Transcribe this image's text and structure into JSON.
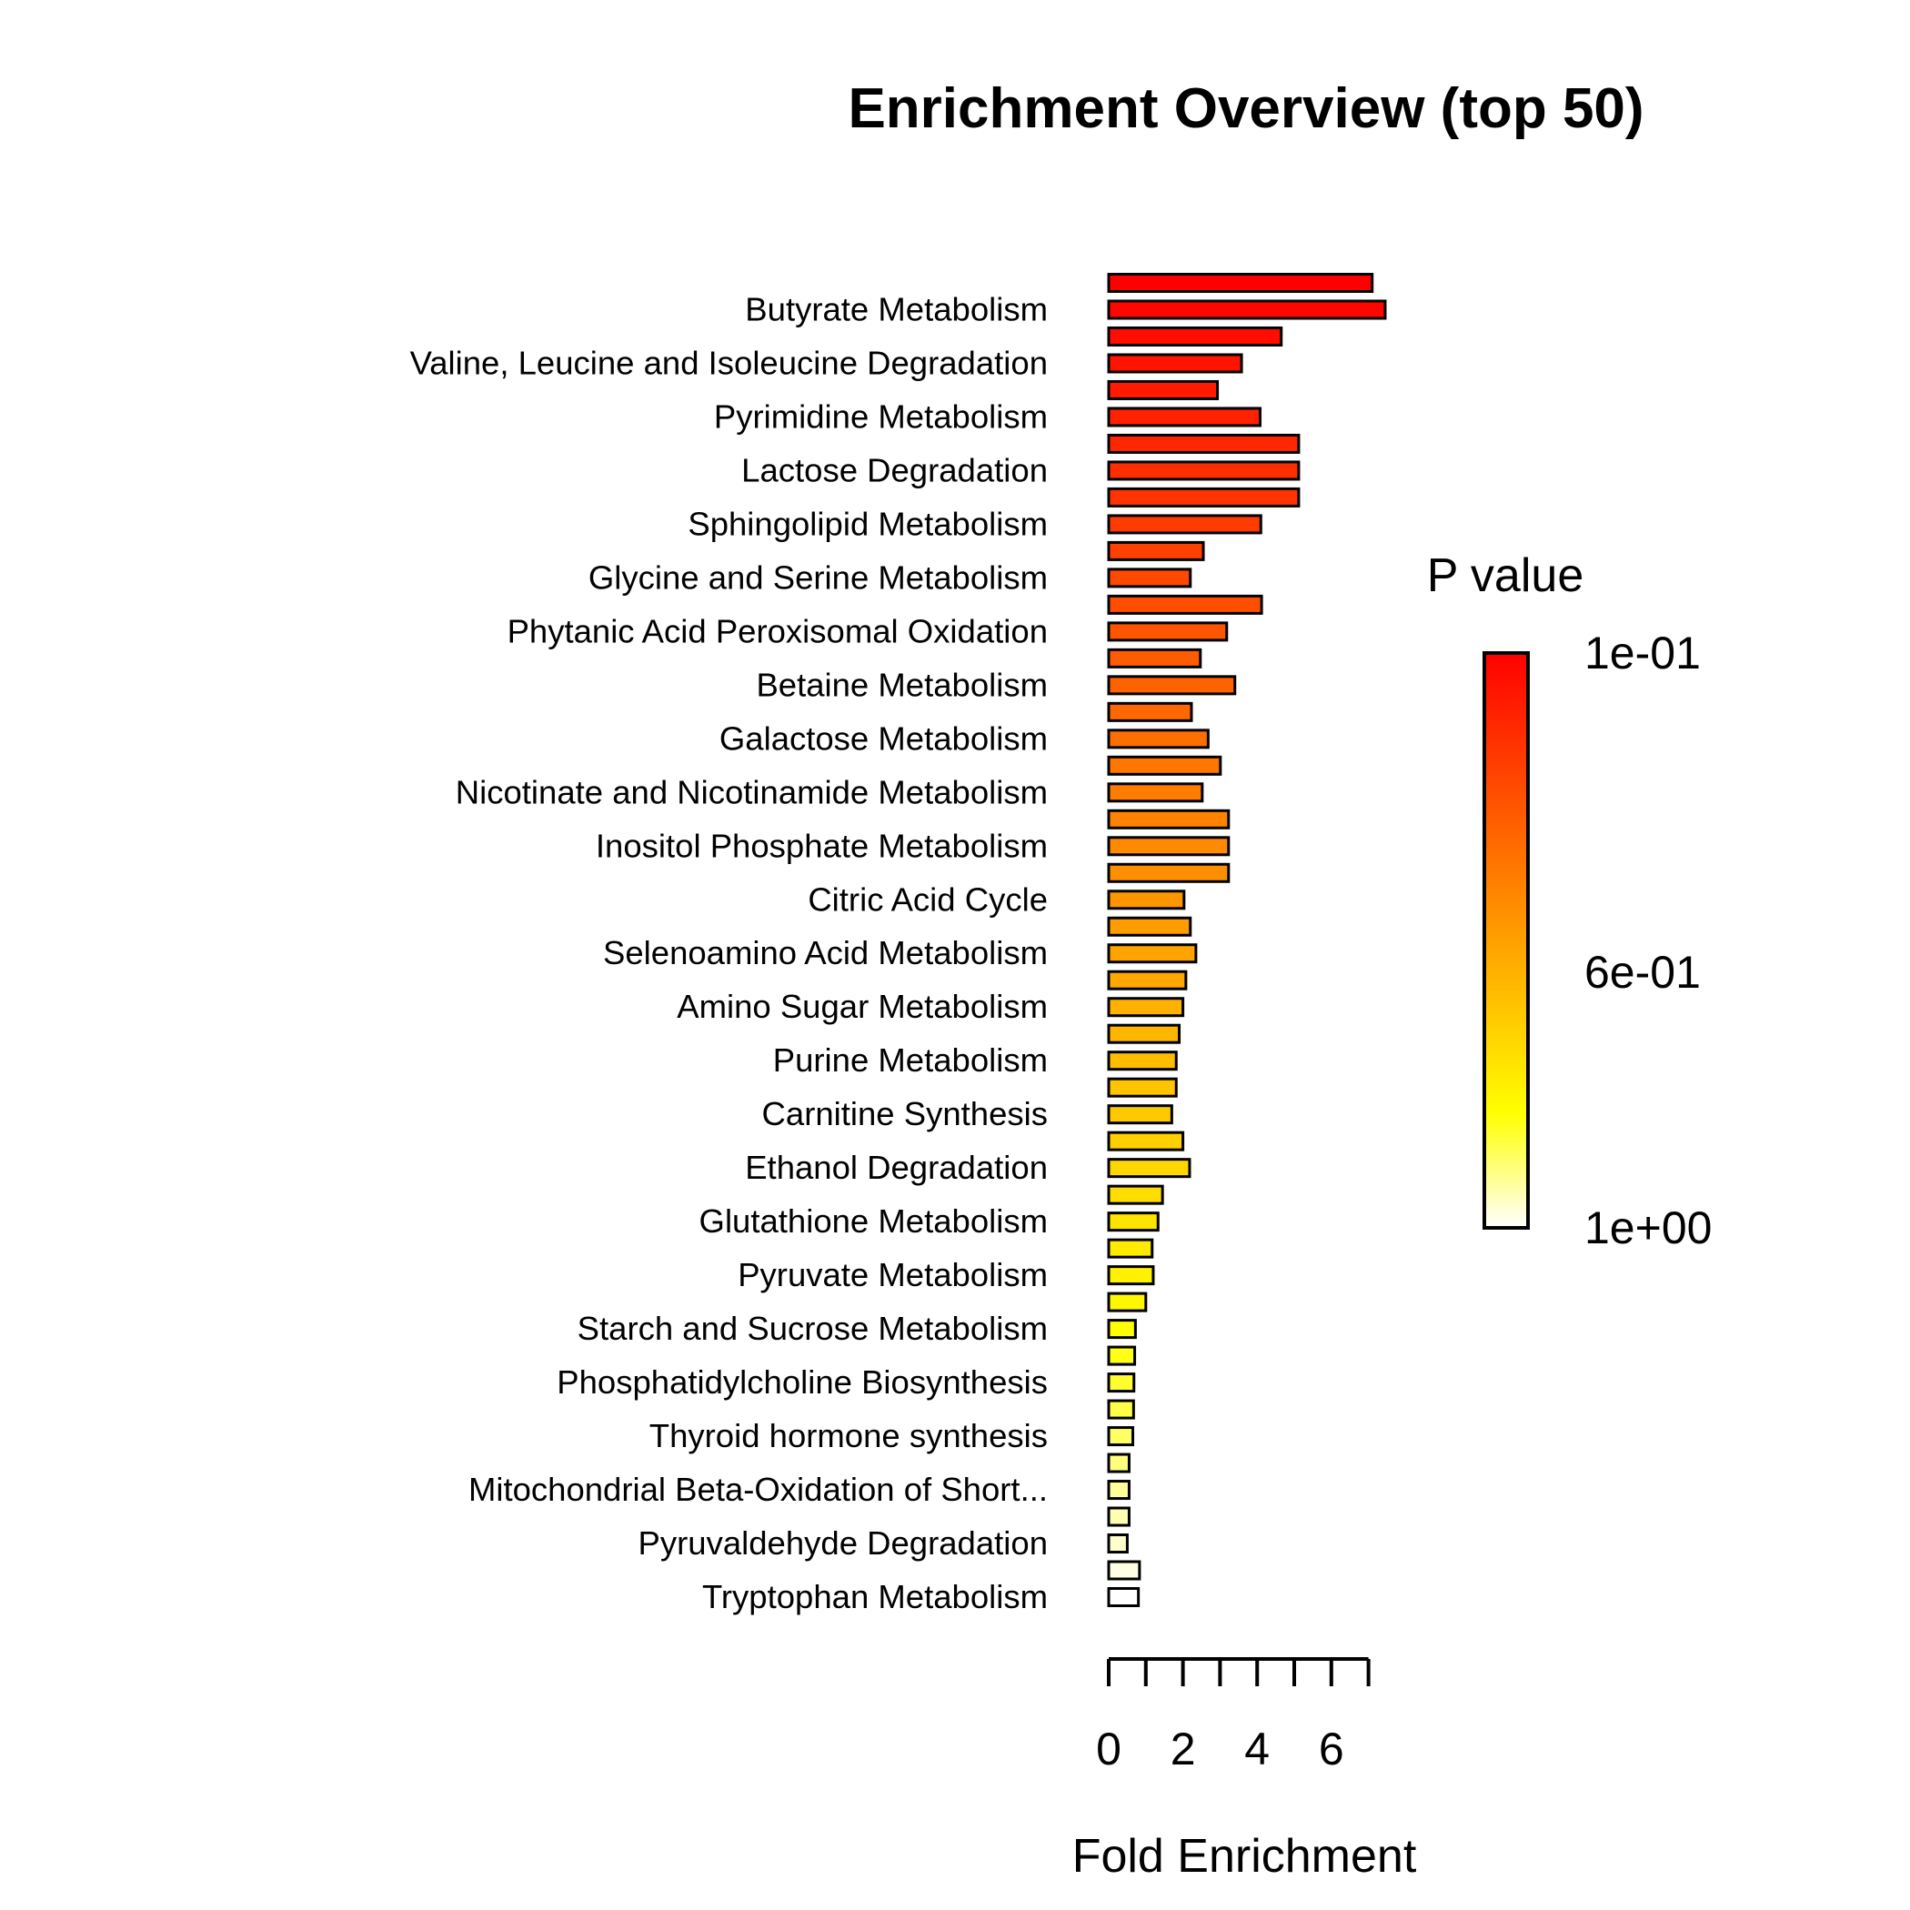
{
  "chart_data": {
    "type": "bar",
    "orientation": "horizontal",
    "title": "Enrichment Overview (top 50)",
    "xlabel": "Fold Enrichment",
    "ylabel": "",
    "xlim": [
      0,
      7
    ],
    "xticks": [
      0,
      1,
      2,
      3,
      4,
      5,
      6,
      7
    ],
    "xtick_labels": [
      "0",
      "2",
      "4",
      "6"
    ],
    "xtick_label_values": [
      0,
      2,
      4,
      6
    ],
    "categories": [
      "",
      "Butyrate Metabolism",
      "",
      "Valine, Leucine and Isoleucine Degradation",
      "",
      "Pyrimidine Metabolism",
      "",
      "Lactose Degradation",
      "",
      "Sphingolipid Metabolism",
      "",
      "Glycine and Serine Metabolism",
      "",
      "Phytanic Acid Peroxisomal Oxidation",
      "",
      "Betaine Metabolism",
      "",
      "Galactose Metabolism",
      "",
      "Nicotinate and Nicotinamide Metabolism",
      "",
      "Inositol Phosphate Metabolism",
      "",
      "Citric Acid Cycle",
      "",
      "Selenoamino Acid Metabolism",
      "",
      "Amino Sugar Metabolism",
      "",
      "Purine Metabolism",
      "",
      "Carnitine Synthesis",
      "",
      "Ethanol Degradation",
      "",
      "Glutathione Metabolism",
      "",
      "Pyruvate Metabolism",
      "",
      "Starch and Sucrose Metabolism",
      "",
      "Phosphatidylcholine Biosynthesis",
      "",
      "Thyroid hormone synthesis",
      "",
      "Mitochondrial Beta-Oxidation of Short...",
      "",
      "Pyruvaldehyde Degradation",
      "",
      "Tryptophan Metabolism"
    ],
    "values": [
      7.1,
      7.45,
      4.65,
      3.58,
      2.93,
      4.08,
      5.12,
      5.12,
      5.12,
      4.1,
      2.55,
      2.2,
      4.12,
      3.18,
      2.47,
      3.4,
      2.23,
      2.68,
      3.01,
      2.52,
      3.23,
      3.23,
      3.23,
      2.03,
      2.2,
      2.35,
      2.08,
      2.0,
      1.9,
      1.82,
      1.82,
      1.7,
      2.0,
      2.18,
      1.45,
      1.33,
      1.17,
      1.2,
      1.0,
      0.72,
      0.7,
      0.68,
      0.67,
      0.65,
      0.55,
      0.55,
      0.55,
      0.5,
      0.83,
      0.8
    ],
    "legend": {
      "title": "P value",
      "placement": "right",
      "labels": [
        "1e-01",
        "6e-01",
        "1e+00"
      ],
      "label_values": [
        0.1,
        0.6,
        1.0
      ],
      "range": [
        0.1,
        1.0
      ],
      "colors": [
        "#ff0000",
        "#ff4000",
        "#ff8000",
        "#ffbf00",
        "#ffff00",
        "#ffffff"
      ]
    },
    "grid": false
  }
}
